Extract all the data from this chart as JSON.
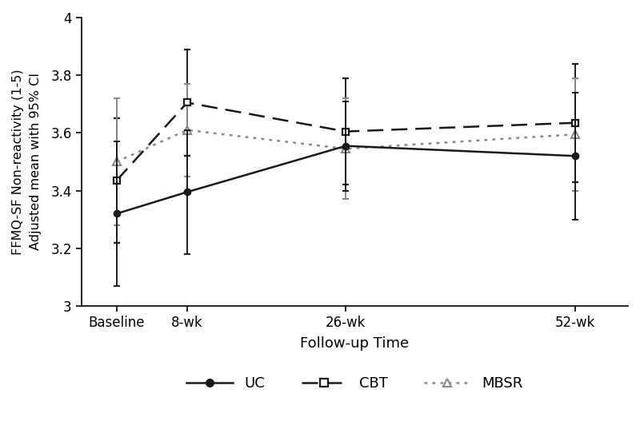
{
  "x_positions": [
    0,
    8,
    26,
    52
  ],
  "x_labels": [
    "Baseline",
    "8-wk",
    "26-wk",
    "52-wk"
  ],
  "uc_means": [
    3.32,
    3.395,
    3.555,
    3.52
  ],
  "uc_lo": [
    3.07,
    3.18,
    3.4,
    3.3
  ],
  "uc_hi": [
    3.57,
    3.61,
    3.71,
    3.74
  ],
  "cbt_means": [
    3.435,
    3.705,
    3.605,
    3.635
  ],
  "cbt_lo": [
    3.22,
    3.52,
    3.42,
    3.43
  ],
  "cbt_hi": [
    3.65,
    3.89,
    3.79,
    3.84
  ],
  "mbsr_means": [
    3.5,
    3.61,
    3.545,
    3.595
  ],
  "mbsr_lo": [
    3.28,
    3.45,
    3.37,
    3.4
  ],
  "mbsr_hi": [
    3.72,
    3.77,
    3.72,
    3.79
  ],
  "ylabel_line1": "FFMQ-SF Non-reactivity (1-5)",
  "ylabel_line2": "Adjusted mean with 95% CI",
  "xlabel": "Follow-up Time",
  "xlim": [
    -4,
    58
  ],
  "ylim": [
    3.0,
    4.0
  ],
  "yticks": [
    3.0,
    3.2,
    3.4,
    3.6,
    3.8,
    4.0
  ],
  "color_uc": "#1a1a1a",
  "color_cbt": "#1a1a1a",
  "color_mbsr": "#888888",
  "bg_color": "#ffffff"
}
